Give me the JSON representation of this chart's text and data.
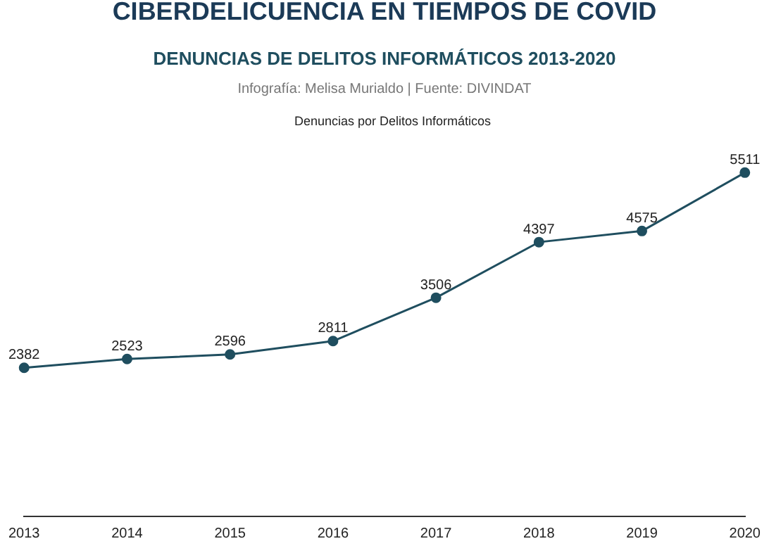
{
  "chart_data": {
    "type": "line",
    "title": "CIBERDELICUENCIA EN TIEMPOS DE COVID",
    "subtitle": "DENUNCIAS DE DELITOS INFORMÁTICOS 2013-2020",
    "annotations": [
      "Infografía: Melisa Murialdo | Fuente: DIVINDAT"
    ],
    "categories": [
      "2013",
      "2014",
      "2015",
      "2016",
      "2017",
      "2018",
      "2019",
      "2020"
    ],
    "series": [
      {
        "name": "Denuncias por Delitos Informáticos",
        "color": "#1f4e5f",
        "values": [
          2382,
          2523,
          2596,
          2811,
          3506,
          4397,
          4575,
          5511
        ]
      }
    ],
    "tick_labels": "x",
    "data_labels": true,
    "legend": "top",
    "marker": "circle",
    "grid": false
  }
}
